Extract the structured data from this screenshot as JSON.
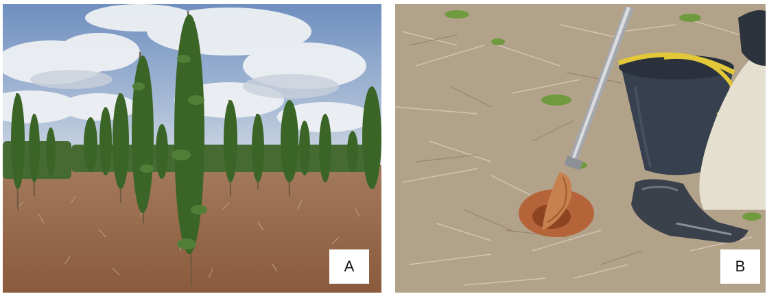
{
  "panels": [
    {
      "label": "A"
    },
    {
      "label": "B"
    }
  ],
  "colors": {
    "sky": "#7f9fc8",
    "cloud": "#eceff3",
    "soil": "#9a6a4a",
    "foliage": "#3f6a2a",
    "straw": "#b8a890",
    "bucket": "#37404e",
    "bucket_rim": "#e2c838"
  }
}
